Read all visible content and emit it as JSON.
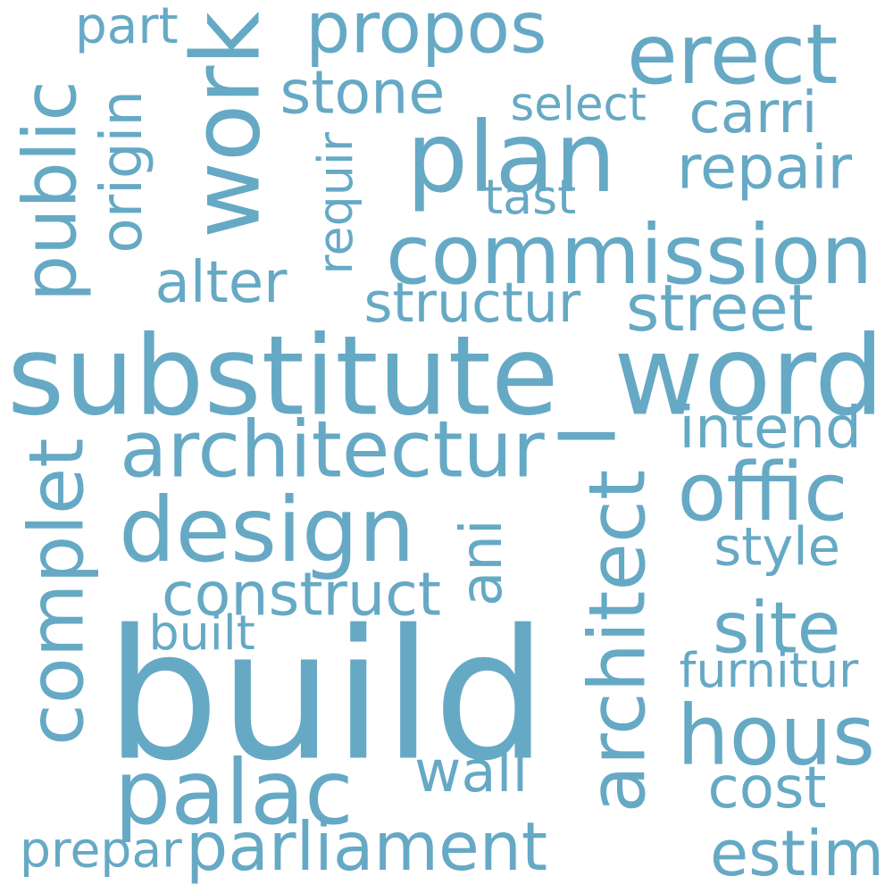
{
  "cloud": {
    "color": "#66a9c5",
    "words": [
      {
        "text": "build"
      },
      {
        "text": "substitute_word"
      },
      {
        "text": "architect"
      },
      {
        "text": "architectur"
      },
      {
        "text": "commission"
      },
      {
        "text": "design"
      },
      {
        "text": "plan"
      },
      {
        "text": "work"
      },
      {
        "text": "public"
      },
      {
        "text": "complet"
      },
      {
        "text": "erect"
      },
      {
        "text": "propos"
      },
      {
        "text": "palac"
      },
      {
        "text": "hous"
      },
      {
        "text": "offic"
      },
      {
        "text": "parliament"
      },
      {
        "text": "site"
      },
      {
        "text": "construct"
      },
      {
        "text": "structur"
      },
      {
        "text": "street"
      },
      {
        "text": "repair"
      },
      {
        "text": "stone"
      },
      {
        "text": "carri"
      },
      {
        "text": "origin"
      },
      {
        "text": "intend"
      },
      {
        "text": "alter"
      },
      {
        "text": "style"
      },
      {
        "text": "estim"
      },
      {
        "text": "wall"
      },
      {
        "text": "cost"
      },
      {
        "text": "ani"
      },
      {
        "text": "furnitur"
      },
      {
        "text": "built"
      },
      {
        "text": "prepar"
      },
      {
        "text": "select"
      },
      {
        "text": "tast"
      },
      {
        "text": "requir"
      },
      {
        "text": "part"
      }
    ]
  }
}
